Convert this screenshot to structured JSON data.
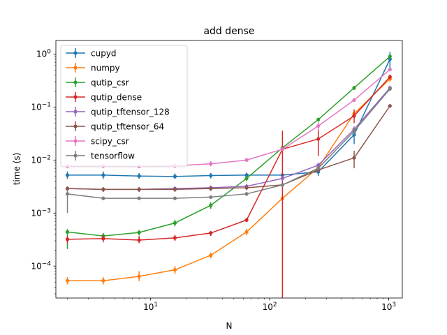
{
  "chart_data": {
    "type": "line",
    "title": "add dense",
    "xlabel": "N",
    "ylabel": "time (s)",
    "xscale": "log",
    "yscale": "log",
    "xlim": [
      1.6,
      1300
    ],
    "ylim": [
      2.5e-05,
      1.8
    ],
    "grid": false,
    "legend_position": "top-left",
    "x_ticks": [
      {
        "value": 10,
        "base": "10",
        "exp": "1"
      },
      {
        "value": 100,
        "base": "10",
        "exp": "2"
      },
      {
        "value": 1000,
        "base": "10",
        "exp": "3"
      }
    ],
    "y_ticks": [
      {
        "value": 0.0001,
        "base": "10",
        "exp": "−4"
      },
      {
        "value": 0.001,
        "base": "10",
        "exp": "−3"
      },
      {
        "value": 0.01,
        "base": "10",
        "exp": "−2"
      },
      {
        "value": 0.1,
        "base": "10",
        "exp": "−1"
      },
      {
        "value": 1,
        "base": "10",
        "exp": "0"
      }
    ],
    "x": [
      2,
      4,
      8,
      16,
      32,
      64,
      128,
      256,
      512,
      1024
    ],
    "series": [
      {
        "name": "cupyd",
        "color": "#1f77b4",
        "values": [
          0.0052,
          0.0052,
          0.005,
          0.0049,
          0.0051,
          0.0052,
          0.0052,
          0.006,
          0.03,
          0.8
        ],
        "err_low": [
          0.0044,
          0.0044,
          0.0044,
          0.0044,
          0.0045,
          0.0046,
          0.0046,
          0.005,
          0.02,
          0.55
        ],
        "err_high": [
          0.0061,
          0.0061,
          0.0057,
          0.0056,
          0.0057,
          0.0058,
          0.0058,
          0.0072,
          0.04,
          1.1
        ]
      },
      {
        "name": "numpy",
        "color": "#ff7f0e",
        "values": [
          5.3e-05,
          5.3e-05,
          6.4e-05,
          8.5e-05,
          0.00016,
          0.00044,
          0.0019,
          0.0072,
          0.075,
          0.34
        ],
        "err_low": [
          4.5e-05,
          4.5e-05,
          5.2e-05,
          7.1e-05,
          0.00014,
          0.00038,
          0.0016,
          0.0062,
          0.06,
          0.3
        ],
        "err_high": [
          6.2e-05,
          6.2e-05,
          8e-05,
          0.0001,
          0.00018,
          0.00051,
          0.0022,
          0.0085,
          0.09,
          0.38
        ]
      },
      {
        "name": "qutip_csr",
        "color": "#2ca02c",
        "values": [
          0.00044,
          0.00037,
          0.00043,
          0.00065,
          0.0014,
          0.0045,
          0.017,
          0.058,
          0.23,
          0.9
        ],
        "err_low": [
          0.00021,
          0.00032,
          0.00038,
          0.00056,
          0.0012,
          0.004,
          0.015,
          0.053,
          0.21,
          0.8
        ],
        "err_high": [
          0.0005,
          0.00042,
          0.00048,
          0.00075,
          0.0016,
          0.005,
          0.019,
          0.063,
          0.25,
          1.0
        ]
      },
      {
        "name": "qutip_dense",
        "color": "#d62728",
        "values": [
          0.00032,
          0.00033,
          0.00031,
          0.00034,
          0.00042,
          0.00074,
          0.016,
          0.025,
          0.068,
          0.37
        ],
        "err_low": [
          0.00027,
          0.00028,
          0.00027,
          0.0003,
          0.00037,
          0.00068,
          2e-05,
          0.012,
          0.05,
          0.33
        ],
        "err_high": [
          0.00037,
          0.00039,
          0.00037,
          0.00039,
          0.00046,
          0.0008,
          0.036,
          0.038,
          0.09,
          0.41
        ]
      },
      {
        "name": "qutip_tftensor_128",
        "color": "#9467bd",
        "values": [
          0.0029,
          0.0028,
          0.0028,
          0.0029,
          0.003,
          0.0032,
          0.0045,
          0.008,
          0.038,
          0.23
        ],
        "err_low": [
          0.0026,
          0.0025,
          0.0025,
          0.0026,
          0.0027,
          0.0029,
          0.004,
          0.007,
          0.033,
          0.21
        ],
        "err_high": [
          0.0032,
          0.0031,
          0.0031,
          0.0032,
          0.0033,
          0.0035,
          0.005,
          0.009,
          0.043,
          0.25
        ]
      },
      {
        "name": "qutip_tftensor_64",
        "color": "#8c564b",
        "values": [
          0.0029,
          0.0028,
          0.0028,
          0.0028,
          0.0029,
          0.003,
          0.0034,
          0.0065,
          0.011,
          0.105
        ],
        "err_low": [
          0.0026,
          0.0025,
          0.0025,
          0.0025,
          0.0026,
          0.0027,
          0.0031,
          0.0058,
          0.007,
          0.098
        ],
        "err_high": [
          0.0032,
          0.0031,
          0.0031,
          0.0031,
          0.0032,
          0.0033,
          0.0037,
          0.0072,
          0.015,
          0.112
        ]
      },
      {
        "name": "scipy_csr",
        "color": "#e377c2",
        "values": [
          0.0077,
          0.0077,
          0.0076,
          0.0078,
          0.0085,
          0.01,
          0.016,
          0.044,
          0.135,
          0.51
        ],
        "err_low": [
          0.007,
          0.0071,
          0.007,
          0.0071,
          0.0076,
          0.0092,
          0.015,
          0.036,
          0.125,
          0.48
        ],
        "err_high": [
          0.0084,
          0.0083,
          0.0082,
          0.0085,
          0.0095,
          0.011,
          0.0175,
          0.052,
          0.145,
          0.55
        ]
      },
      {
        "name": "tensorflow",
        "color": "#7f7f7f",
        "values": [
          0.0023,
          0.0019,
          0.0019,
          0.0019,
          0.002,
          0.0023,
          0.0034,
          0.007,
          0.035,
          0.22
        ],
        "err_low": [
          0.001,
          0.0018,
          0.0018,
          0.0018,
          0.0019,
          0.0021,
          0.0031,
          0.0063,
          0.03,
          0.2
        ],
        "err_high": [
          0.0027,
          0.002,
          0.002,
          0.002,
          0.0021,
          0.0025,
          0.0037,
          0.0077,
          0.04,
          0.24
        ]
      }
    ]
  }
}
